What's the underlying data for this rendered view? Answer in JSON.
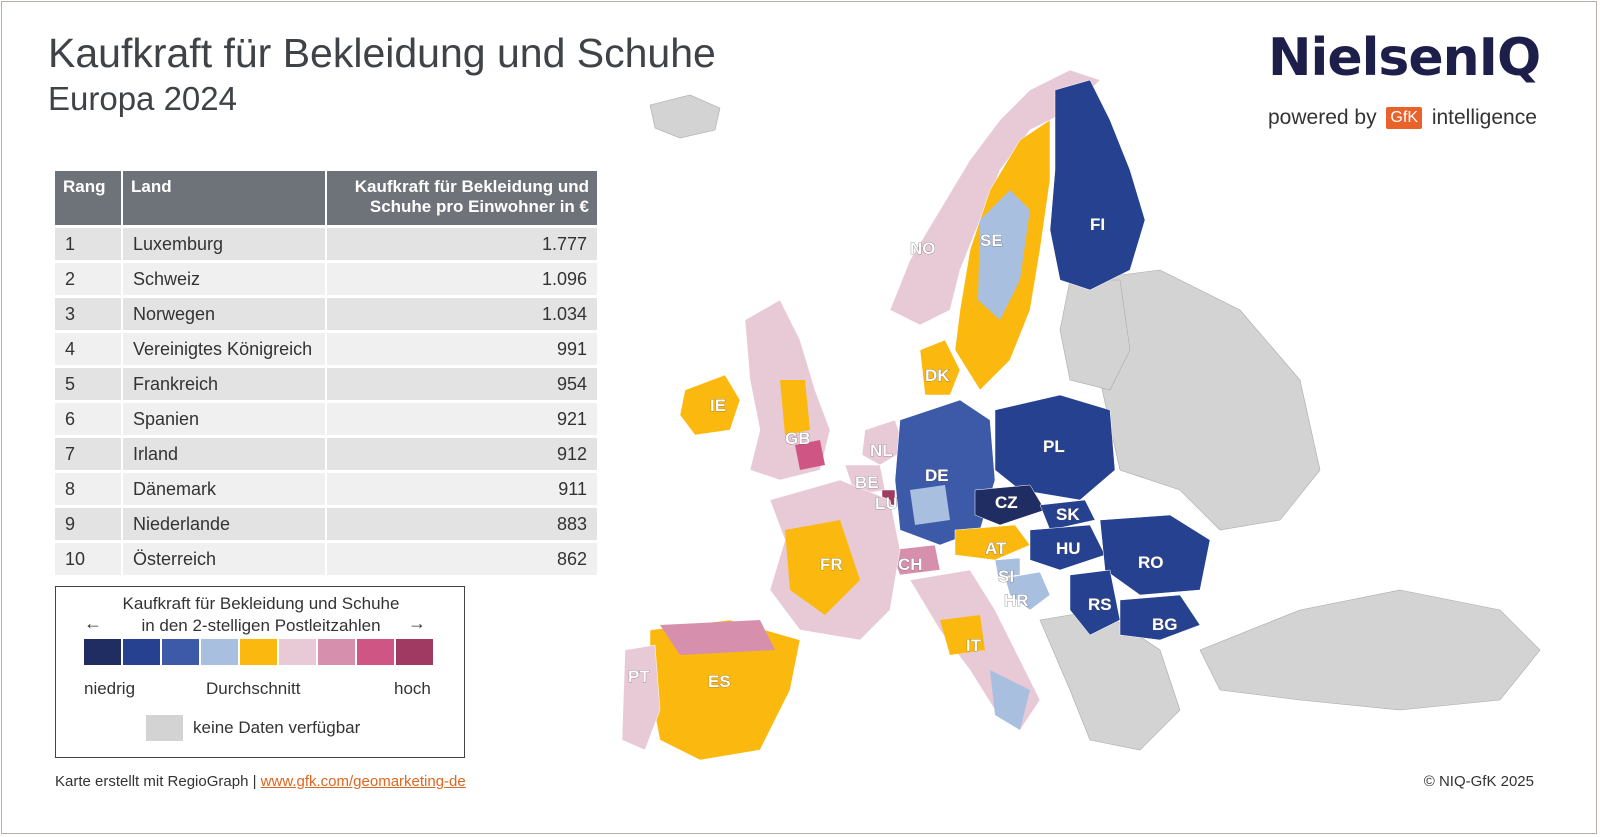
{
  "title": "Kaufkraft für Bekleidung und Schuhe",
  "subtitle": "Europa 2024",
  "logo": {
    "brand": "NielsenIQ",
    "powered_by": "powered by",
    "gfk": "GfK",
    "intelligence": "intelligence"
  },
  "table": {
    "headers": {
      "rank": "Rang",
      "country": "Land",
      "value": "Kaufkraft für Bekleidung und Schuhe pro Einwohner in €"
    },
    "rows": [
      {
        "rank": "1",
        "country": "Luxemburg",
        "value": "1.777"
      },
      {
        "rank": "2",
        "country": "Schweiz",
        "value": "1.096"
      },
      {
        "rank": "3",
        "country": "Norwegen",
        "value": "1.034"
      },
      {
        "rank": "4",
        "country": "Vereinigtes Königreich",
        "value": "991"
      },
      {
        "rank": "5",
        "country": "Frankreich",
        "value": "954"
      },
      {
        "rank": "6",
        "country": "Spanien",
        "value": "921"
      },
      {
        "rank": "7",
        "country": "Irland",
        "value": "912"
      },
      {
        "rank": "8",
        "country": "Dänemark",
        "value": "911"
      },
      {
        "rank": "9",
        "country": "Niederlande",
        "value": "883"
      },
      {
        "rank": "10",
        "country": "Österreich",
        "value": "862"
      }
    ]
  },
  "legend": {
    "title_line1": "Kaufkraft für Bekleidung und Schuhe",
    "title_line2": "in den 2-stelligen Postleitzahlen",
    "arrow_left": "←",
    "arrow_right": "→",
    "low": "niedrig",
    "mid": "Durchschnitt",
    "high": "hoch",
    "nodata": "keine Daten verfügbar",
    "scale_colors": [
      "#1f2d63",
      "#26418f",
      "#3d5aa8",
      "#a9bfdf",
      "#fbb80f",
      "#e8cad7",
      "#d690ad",
      "#cf5585",
      "#a03a62"
    ],
    "nodata_color": "#d3d3d3"
  },
  "map": {
    "countries": [
      "FI",
      "SE",
      "NO",
      "DK",
      "IE",
      "GB",
      "NL",
      "BE",
      "LU",
      "DE",
      "PL",
      "CZ",
      "SK",
      "AT",
      "HU",
      "RO",
      "FR",
      "CH",
      "SI",
      "HR",
      "RS",
      "BG",
      "IT",
      "PT",
      "ES"
    ]
  },
  "footer": {
    "left_text": "Karte erstellt mit RegioGraph | ",
    "link": "www.gfk.com/geomarketing-de",
    "right": "© NIQ-GfK 2025"
  }
}
